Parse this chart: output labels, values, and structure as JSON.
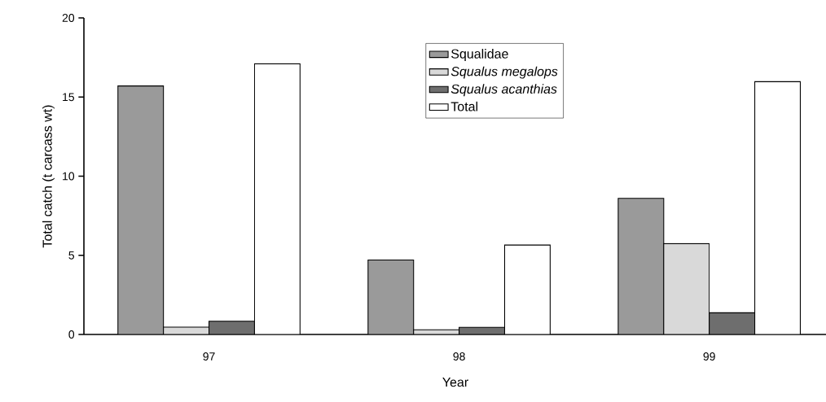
{
  "chart_data": {
    "type": "bar",
    "xlabel": "Year",
    "ylabel": "Total catch (t carcass wt)",
    "categories": [
      "97",
      "98",
      "99"
    ],
    "series": [
      {
        "name": "Squalidae",
        "color": "#9a9a9a",
        "values": [
          15.7,
          4.7,
          8.6
        ]
      },
      {
        "name": "*Squalus megalops*",
        "color": "#d9d9d9",
        "values": [
          0.46,
          0.3,
          5.74
        ]
      },
      {
        "name": "*Squalus acanthias*",
        "color": "#6e6e6e",
        "values": [
          0.84,
          0.45,
          1.37
        ]
      },
      {
        "name": "Total",
        "color": "#ffffff",
        "values": [
          17.1,
          5.65,
          15.97
        ]
      }
    ],
    "ylim": [
      0,
      20
    ],
    "yticks": [
      0,
      5,
      10,
      15,
      20
    ],
    "grid": false,
    "legend": "top"
  }
}
